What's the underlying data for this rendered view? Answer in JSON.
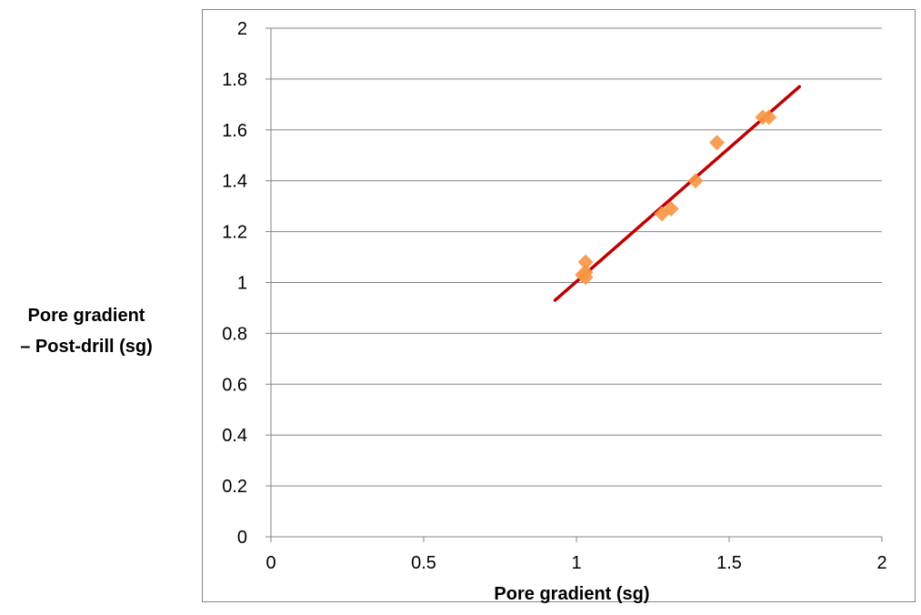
{
  "chart_data": {
    "type": "scatter",
    "title": "",
    "xlabel": "Pore gradient (sg)",
    "ylabel_lines": [
      "Pore gradient",
      "– Post-drill (sg)"
    ],
    "xlim": [
      0,
      2
    ],
    "ylim": [
      0,
      2
    ],
    "x_ticks": [
      "0",
      "0.5",
      "1",
      "1.5",
      "2"
    ],
    "y_ticks": [
      "0",
      "0.2",
      "0.4",
      "0.6",
      "0.8",
      "1",
      "1.2",
      "1.4",
      "1.6",
      "1.8",
      "2"
    ],
    "grid": "horizontal",
    "legend": "none",
    "series": [
      {
        "marker": "diamond",
        "color": "#f79646",
        "points": [
          {
            "x": 1.02,
            "y": 1.03
          },
          {
            "x": 1.03,
            "y": 1.02
          },
          {
            "x": 1.03,
            "y": 1.04
          },
          {
            "x": 1.03,
            "y": 1.08
          },
          {
            "x": 1.28,
            "y": 1.27
          },
          {
            "x": 1.31,
            "y": 1.29
          },
          {
            "x": 1.39,
            "y": 1.4
          },
          {
            "x": 1.46,
            "y": 1.55
          },
          {
            "x": 1.61,
            "y": 1.65
          },
          {
            "x": 1.63,
            "y": 1.65
          }
        ]
      }
    ],
    "trendline": {
      "color": "#c00000",
      "from": {
        "x": 0.93,
        "y": 0.93
      },
      "to": {
        "x": 1.73,
        "y": 1.77
      }
    }
  }
}
